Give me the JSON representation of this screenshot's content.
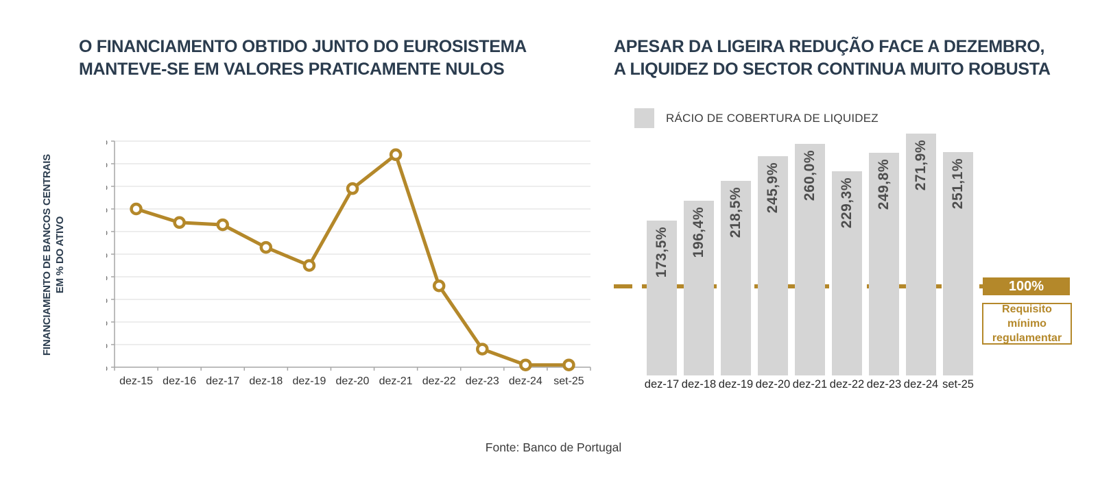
{
  "titles": {
    "left_line1": "O FINANCIAMENTO OBTIDO JUNTO DO EUROSISTEMA",
    "left_line2": "MANTEVE-SE EM VALORES PRATICAMENTE NULOS",
    "right_line1": "APESAR DA LIGEIRA REDUÇÃO FACE A DEZEMBRO,",
    "right_line2": "A LIQUIDEZ DO SECTOR CONTINUA MUITO ROBUSTA"
  },
  "source_note": "Fonte: Banco de Portugal",
  "colors": {
    "gold": "#B4882A",
    "navy": "#2B3C4E",
    "bar_gray": "#D5D5D5",
    "grid": "#DBDBDB",
    "axis": "#A6A6A6",
    "y_tick_text": "#595959",
    "x_tick_text": "#333333",
    "bar_value_text": "#4D4D4D"
  },
  "chart_data": [
    {
      "id": "eurosystem-funding",
      "type": "line",
      "title": "O FINANCIAMENTO OBTIDO JUNTO DO EUROSISTEMA MANTEVE-SE EM VALORES PRATICAMENTE NULOS",
      "ylabel_line1": "FINANCIAMENTO DE BANCOS CENTRAIS",
      "ylabel_line2": "EM % DO ATIVO",
      "categories": [
        "dez-15",
        "dez-16",
        "dez-17",
        "dez-18",
        "dez-19",
        "dez-20",
        "dez-21",
        "dez-22",
        "dez-23",
        "dez-24",
        "set-25"
      ],
      "values": [
        7.0,
        6.4,
        6.3,
        5.3,
        4.5,
        7.9,
        9.4,
        3.6,
        0.8,
        0.1,
        0.1
      ],
      "ylim": [
        0,
        10
      ],
      "ytick_step": 1,
      "ytick_suffix": "%",
      "grid": true,
      "legend_position": "none",
      "line_color": "#B4882A",
      "marker": "open-circle"
    },
    {
      "id": "liquidity-coverage-ratio",
      "type": "bar",
      "title": "APESAR DA LIGEIRA REDUÇÃO FACE A DEZEMBRO, A LIQUIDEZ DO SECTOR CONTINUA MUITO ROBUSTA",
      "legend": [
        "RÁCIO DE COBERTURA DE LIQUIDEZ"
      ],
      "legend_position": "top",
      "categories": [
        "dez-17",
        "dez-18",
        "dez-19",
        "dez-20",
        "dez-21",
        "dez-22",
        "dez-23",
        "dez-24",
        "set-25"
      ],
      "values": [
        173.5,
        196.4,
        218.5,
        245.9,
        260.0,
        229.3,
        249.8,
        271.9,
        251.1
      ],
      "value_labels": [
        "173,5%",
        "196,4%",
        "218,5%",
        "245,9%",
        "260,0%",
        "229,3%",
        "249,8%",
        "271,9%",
        "251,1%"
      ],
      "bar_color": "#D5D5D5",
      "reference_line": {
        "value": 100,
        "label": "100%",
        "caption_line1": "Requisito mínimo",
        "caption_line2": "regulamentar",
        "style": "dashed",
        "color": "#B4882A"
      }
    }
  ]
}
